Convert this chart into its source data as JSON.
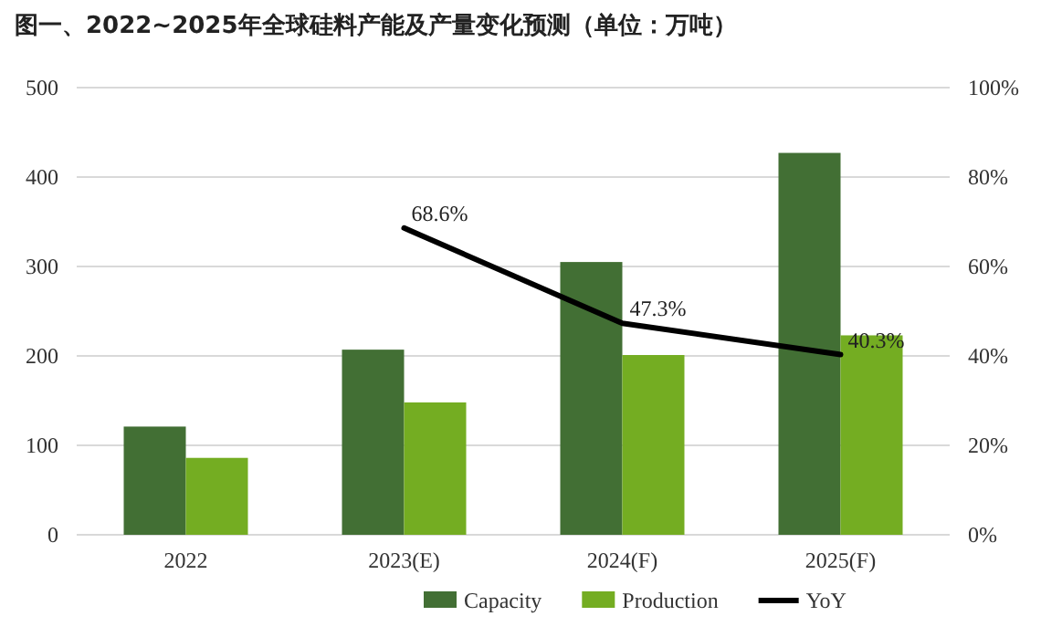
{
  "chart_data": {
    "type": "bar",
    "title": "图一、2022~2025年全球硅料产能及产量变化预测（单位：万吨）",
    "categories": [
      "2022",
      "2023(E)",
      "2024(F)",
      "2025(F)"
    ],
    "series": [
      {
        "name": "Capacity",
        "color": "#426f34",
        "values": [
          121,
          207,
          305,
          427
        ]
      },
      {
        "name": "Production",
        "color": "#74ad22",
        "values": [
          86,
          148,
          201,
          223
        ]
      },
      {
        "name": "YoY",
        "type": "line",
        "axis": "y2",
        "color": "#000000",
        "values": [
          null,
          68.6,
          47.3,
          40.3
        ],
        "value_labels": [
          null,
          "68.6%",
          "47.3%",
          "40.3%"
        ]
      }
    ],
    "ylim": [
      0,
      500
    ],
    "yticks": [
      0,
      100,
      200,
      300,
      400,
      500
    ],
    "y2lim": [
      0,
      100
    ],
    "y2ticks": [
      {
        "value": 0,
        "label": "0%"
      },
      {
        "value": 20,
        "label": "20%"
      },
      {
        "value": 40,
        "label": "40%"
      },
      {
        "value": 60,
        "label": "60%"
      },
      {
        "value": 80,
        "label": "80%"
      },
      {
        "value": 100,
        "label": "100%"
      }
    ],
    "grid": "y",
    "legend": "bottom",
    "marker": "none"
  }
}
